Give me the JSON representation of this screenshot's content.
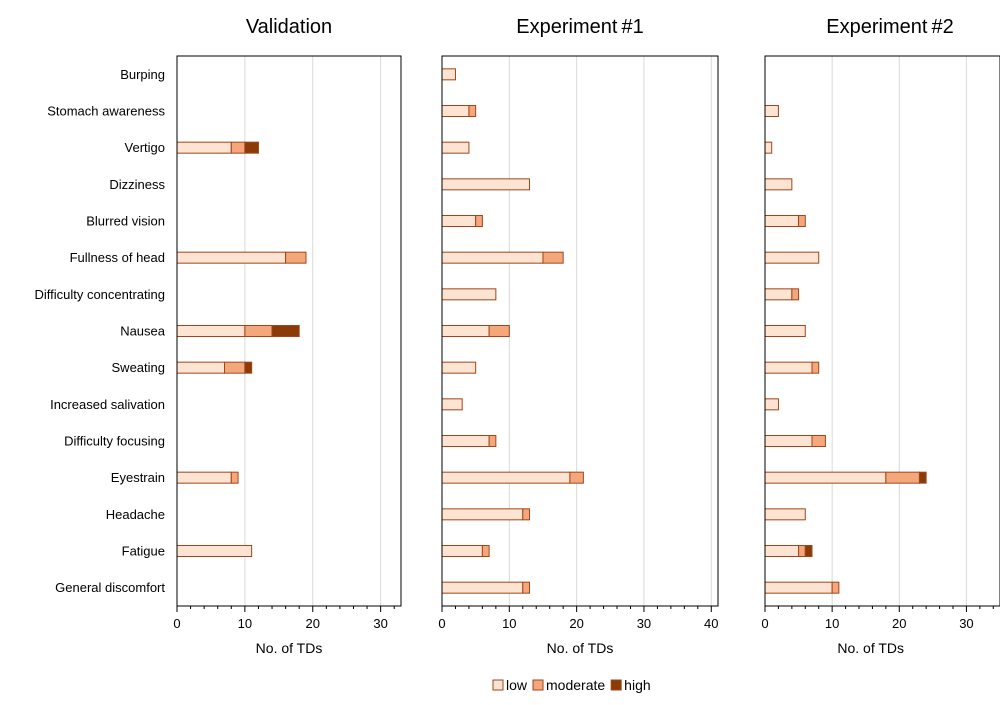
{
  "colors": {
    "low": "#fde3d1",
    "moderate": "#f4a77b",
    "high": "#8a3b08",
    "bar_stroke": "#a0461a",
    "grid": "#d9d9d9"
  },
  "chart_data": {
    "type": "bar",
    "orientation": "horizontal",
    "stacked": true,
    "categories": [
      "Burping",
      "Stomach awareness",
      "Vertigo",
      "Dizziness",
      "Blurred vision",
      "Fullness of head",
      "Difficulty concentrating",
      "Nausea",
      "Sweating",
      "Increased salivation",
      "Difficulty focusing",
      "Eyestrain",
      "Headache",
      "Fatigue",
      "General discomfort"
    ],
    "legend": {
      "position": "bottom",
      "items": [
        "low",
        "moderate",
        "high"
      ]
    },
    "grid": true,
    "panels": [
      {
        "title": "Validation",
        "xlabel": "No. of TDs",
        "xlim": [
          0,
          33
        ],
        "xticks": [
          0,
          10,
          20,
          30
        ],
        "series": [
          {
            "name": "low",
            "values": [
              0,
              0,
              8,
              0,
              0,
              16,
              0,
              10,
              7,
              0,
              0,
              8,
              0,
              11,
              0
            ]
          },
          {
            "name": "moderate",
            "values": [
              0,
              0,
              2,
              0,
              0,
              3,
              0,
              4,
              3,
              0,
              0,
              1,
              0,
              0,
              0
            ]
          },
          {
            "name": "high",
            "values": [
              0,
              0,
              2,
              0,
              0,
              0,
              0,
              4,
              1,
              0,
              0,
              0,
              0,
              0,
              0
            ]
          }
        ]
      },
      {
        "title": "Experiment #1",
        "xlabel": "No. of TDs",
        "xlim": [
          0,
          41
        ],
        "xticks": [
          0,
          10,
          20,
          30,
          40
        ],
        "series": [
          {
            "name": "low",
            "values": [
              2,
              4,
              4,
              13,
              5,
              15,
              8,
              7,
              5,
              3,
              7,
              19,
              12,
              6,
              12
            ]
          },
          {
            "name": "moderate",
            "values": [
              0,
              1,
              0,
              0,
              1,
              3,
              0,
              3,
              0,
              0,
              1,
              2,
              1,
              1,
              1
            ]
          },
          {
            "name": "high",
            "values": [
              0,
              0,
              0,
              0,
              0,
              0,
              0,
              0,
              0,
              0,
              0,
              0,
              0,
              0,
              0
            ]
          }
        ]
      },
      {
        "title": "Experiment #2",
        "xlabel": "No. of TDs",
        "xlim": [
          0,
          35
        ],
        "xticks": [
          0,
          10,
          20,
          30
        ],
        "series": [
          {
            "name": "low",
            "values": [
              0,
              2,
              1,
              4,
              5,
              8,
              4,
              6,
              7,
              2,
              7,
              18,
              6,
              5,
              10
            ]
          },
          {
            "name": "moderate",
            "values": [
              0,
              0,
              0,
              0,
              1,
              0,
              1,
              0,
              1,
              0,
              2,
              5,
              0,
              1,
              1
            ]
          },
          {
            "name": "high",
            "values": [
              0,
              0,
              0,
              0,
              0,
              0,
              0,
              0,
              0,
              0,
              0,
              1,
              0,
              1,
              0
            ]
          }
        ]
      }
    ]
  }
}
